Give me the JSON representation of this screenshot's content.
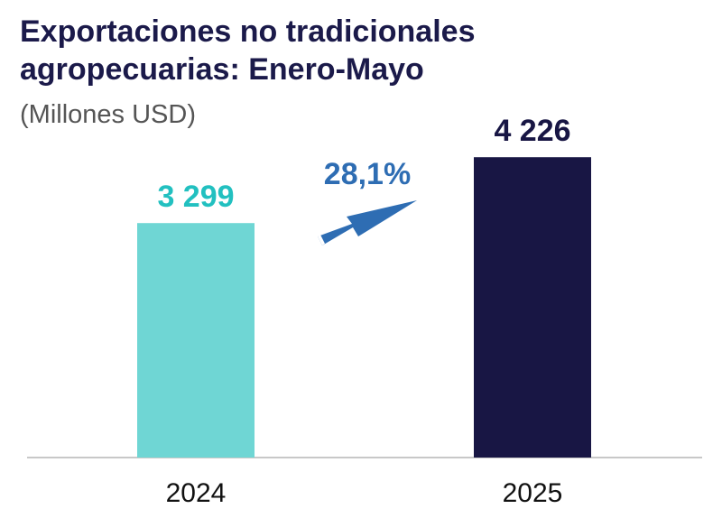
{
  "chart_data": {
    "type": "bar",
    "title": "Exportaciones no tradicionales agropecuarias: Enero-Mayo",
    "title_lines": [
      "Exportaciones no tradicionales",
      "agropecuarias: Enero-Mayo"
    ],
    "subtitle": "(Millones USD)",
    "categories": [
      "2024",
      "2025"
    ],
    "values": [
      3299,
      4226
    ],
    "value_labels": [
      "3 299",
      "4 226"
    ],
    "bar_colors": [
      "#6fd6d4",
      "#181644"
    ],
    "label_colors": [
      "#22c0c0",
      "#181644"
    ],
    "growth_label": "28,1%",
    "growth_color": "#2e6db3",
    "xlabel": "",
    "ylabel": "",
    "ylim": [
      0,
      4800
    ],
    "grid": false,
    "legend": "none"
  }
}
